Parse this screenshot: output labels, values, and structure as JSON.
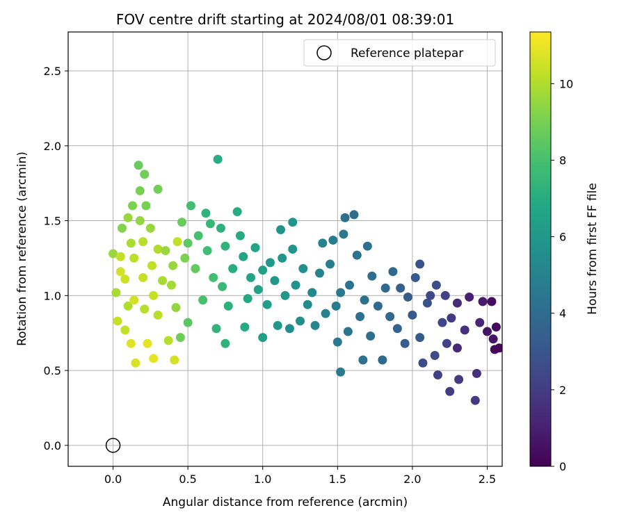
{
  "chart_data": {
    "type": "scatter",
    "title": "FOV centre drift starting at 2024/08/01 08:39:01",
    "xlabel": "Angular distance from reference (arcmin)",
    "ylabel": "Rotation from reference (arcmin)",
    "xlim": [
      -0.3,
      2.6
    ],
    "ylim": [
      -0.14,
      2.76
    ],
    "xticks": [
      0.0,
      0.5,
      1.0,
      1.5,
      2.0,
      2.5
    ],
    "yticks": [
      0.0,
      0.5,
      1.0,
      1.5,
      2.0,
      2.5
    ],
    "xtick_labels": [
      "0.0",
      "0.5",
      "1.0",
      "1.5",
      "2.0",
      "2.5"
    ],
    "ytick_labels": [
      "0.0",
      "0.5",
      "1.0",
      "1.5",
      "2.0",
      "2.5"
    ],
    "grid": true,
    "legend": {
      "placement": "upper-right",
      "entries": [
        "Reference platepar"
      ]
    },
    "reference_point": {
      "x": 0.0,
      "y": 0.0
    },
    "colorbar": {
      "label": "Hours from first FF file",
      "colormap": "viridis",
      "range": [
        0,
        11.35
      ],
      "ticks": [
        0,
        2,
        4,
        6,
        8,
        10
      ],
      "tick_labels": [
        "0",
        "2",
        "4",
        "6",
        "8",
        "10"
      ]
    },
    "series": [
      {
        "columns": [
          "x",
          "y",
          "hours"
        ],
        "points": [
          [
            0.0,
            1.28,
            9.6
          ],
          [
            0.05,
            1.16,
            10.6
          ],
          [
            0.05,
            1.26,
            10.3
          ],
          [
            0.02,
            1.02,
            9.9
          ],
          [
            0.03,
            0.83,
            10.4
          ],
          [
            0.06,
            1.45,
            9.2
          ],
          [
            0.08,
            1.11,
            10.5
          ],
          [
            0.1,
            0.93,
            10.0
          ],
          [
            0.08,
            0.77,
            10.3
          ],
          [
            0.12,
            0.68,
            10.8
          ],
          [
            0.1,
            1.52,
            9.6
          ],
          [
            0.12,
            1.35,
            9.9
          ],
          [
            0.14,
            1.25,
            10.2
          ],
          [
            0.13,
            1.6,
            9.1
          ],
          [
            0.14,
            0.97,
            10.6
          ],
          [
            0.15,
            0.55,
            10.7
          ],
          [
            0.17,
            1.87,
            8.7
          ],
          [
            0.18,
            1.7,
            9.0
          ],
          [
            0.21,
            1.81,
            8.9
          ],
          [
            0.18,
            1.5,
            9.5
          ],
          [
            0.2,
            1.36,
            10.1
          ],
          [
            0.2,
            1.12,
            10.4
          ],
          [
            0.21,
            0.91,
            10.1
          ],
          [
            0.22,
            1.6,
            9.0
          ],
          [
            0.23,
            0.68,
            10.9
          ],
          [
            0.25,
            1.45,
            9.6
          ],
          [
            0.26,
            1.2,
            10.3
          ],
          [
            0.27,
            1.0,
            10.4
          ],
          [
            0.27,
            0.58,
            10.9
          ],
          [
            0.3,
            1.71,
            8.9
          ],
          [
            0.3,
            1.31,
            10.0
          ],
          [
            0.3,
            0.87,
            10.1
          ],
          [
            0.33,
            1.1,
            9.9
          ],
          [
            0.35,
            1.3,
            9.6
          ],
          [
            0.37,
            0.7,
            10.1
          ],
          [
            0.39,
            1.07,
            9.8
          ],
          [
            0.4,
            1.2,
            9.6
          ],
          [
            0.41,
            0.57,
            10.6
          ],
          [
            0.42,
            0.92,
            9.5
          ],
          [
            0.43,
            1.36,
            10.3
          ],
          [
            0.45,
            0.72,
            8.8
          ],
          [
            0.46,
            1.49,
            8.7
          ],
          [
            0.5,
            0.82,
            8.4
          ],
          [
            0.48,
            1.25,
            9.1
          ],
          [
            0.5,
            1.35,
            8.5
          ],
          [
            0.52,
            1.6,
            7.9
          ],
          [
            0.55,
            1.18,
            8.6
          ],
          [
            0.57,
            1.4,
            8.0
          ],
          [
            0.6,
            0.97,
            8.0
          ],
          [
            0.62,
            1.55,
            7.3
          ],
          [
            0.63,
            1.3,
            7.8
          ],
          [
            0.65,
            1.48,
            7.5
          ],
          [
            0.67,
            1.12,
            7.9
          ],
          [
            0.69,
            0.78,
            7.4
          ],
          [
            0.7,
            1.91,
            7.0
          ],
          [
            0.72,
            1.45,
            7.2
          ],
          [
            0.73,
            1.06,
            7.6
          ],
          [
            0.75,
            0.68,
            7.3
          ],
          [
            0.75,
            1.33,
            7.3
          ],
          [
            0.77,
            0.93,
            7.2
          ],
          [
            0.8,
            1.18,
            7.0
          ],
          [
            0.83,
            1.56,
            7.0
          ],
          [
            0.85,
            1.4,
            6.9
          ],
          [
            0.87,
            1.26,
            6.6
          ],
          [
            0.88,
            0.79,
            6.9
          ],
          [
            0.9,
            0.98,
            6.8
          ],
          [
            0.92,
            1.12,
            6.6
          ],
          [
            0.95,
            1.32,
            6.6
          ],
          [
            0.97,
            1.04,
            6.5
          ],
          [
            1.0,
            0.72,
            6.4
          ],
          [
            1.0,
            1.17,
            6.4
          ],
          [
            1.03,
            0.94,
            6.3
          ],
          [
            1.05,
            1.22,
            6.0
          ],
          [
            1.08,
            1.1,
            5.9
          ],
          [
            1.1,
            0.8,
            6.0
          ],
          [
            1.12,
            1.44,
            5.8
          ],
          [
            1.13,
            1.25,
            5.9
          ],
          [
            1.15,
            1.0,
            5.9
          ],
          [
            1.18,
            0.78,
            5.5
          ],
          [
            1.2,
            1.31,
            5.8
          ],
          [
            1.2,
            1.49,
            5.8
          ],
          [
            1.22,
            1.07,
            5.7
          ],
          [
            1.25,
            0.83,
            5.6
          ],
          [
            1.27,
            1.18,
            5.6
          ],
          [
            1.3,
            0.94,
            5.4
          ],
          [
            1.33,
            1.02,
            5.3
          ],
          [
            1.35,
            0.8,
            5.2
          ],
          [
            1.38,
            1.15,
            5.1
          ],
          [
            1.4,
            1.35,
            5.0
          ],
          [
            1.42,
            0.88,
            5.0
          ],
          [
            1.45,
            1.21,
            4.8
          ],
          [
            1.47,
            1.37,
            4.7
          ],
          [
            1.49,
            0.93,
            4.7
          ],
          [
            1.5,
            0.69,
            4.6
          ],
          [
            1.52,
            1.02,
            4.6
          ],
          [
            1.52,
            0.49,
            4.6
          ],
          [
            1.54,
            1.41,
            4.5
          ],
          [
            1.55,
            1.52,
            4.2
          ],
          [
            1.57,
            0.76,
            4.4
          ],
          [
            1.58,
            1.07,
            4.3
          ],
          [
            1.61,
            1.54,
            4.0
          ],
          [
            1.63,
            1.27,
            4.2
          ],
          [
            1.65,
            0.86,
            4.2
          ],
          [
            1.67,
            0.57,
            4.2
          ],
          [
            1.68,
            0.97,
            4.2
          ],
          [
            1.7,
            1.33,
            4.1
          ],
          [
            1.72,
            0.73,
            4.1
          ],
          [
            1.73,
            1.13,
            4.1
          ],
          [
            1.77,
            0.93,
            3.9
          ],
          [
            1.8,
            0.57,
            3.9
          ],
          [
            1.82,
            1.05,
            3.8
          ],
          [
            1.85,
            0.86,
            3.8
          ],
          [
            1.87,
            1.16,
            3.8
          ],
          [
            1.9,
            0.78,
            3.5
          ],
          [
            1.92,
            1.05,
            3.5
          ],
          [
            1.95,
            0.68,
            3.3
          ],
          [
            1.97,
            0.99,
            3.3
          ],
          [
            2.0,
            0.87,
            3.2
          ],
          [
            2.02,
            1.12,
            3.2
          ],
          [
            2.05,
            1.21,
            2.8
          ],
          [
            2.05,
            0.72,
            3.2
          ],
          [
            2.07,
            0.55,
            2.6
          ],
          [
            2.1,
            0.95,
            2.8
          ],
          [
            2.12,
            1.0,
            2.5
          ],
          [
            2.15,
            0.6,
            2.6
          ],
          [
            2.16,
            1.07,
            2.7
          ],
          [
            2.17,
            0.47,
            2.2
          ],
          [
            2.2,
            0.82,
            2.4
          ],
          [
            2.22,
            1.0,
            2.2
          ],
          [
            2.23,
            0.68,
            2.2
          ],
          [
            2.25,
            0.36,
            2.0
          ],
          [
            2.26,
            0.85,
            1.9
          ],
          [
            2.3,
            0.95,
            1.4
          ],
          [
            2.3,
            0.65,
            1.3
          ],
          [
            2.31,
            0.44,
            1.9
          ],
          [
            2.35,
            0.77,
            1.6
          ],
          [
            2.38,
            0.99,
            1.0
          ],
          [
            2.42,
            0.3,
            1.9
          ],
          [
            2.43,
            0.48,
            1.6
          ],
          [
            2.45,
            0.82,
            1.2
          ],
          [
            2.47,
            0.96,
            0.8
          ],
          [
            2.5,
            0.76,
            0.6
          ],
          [
            2.53,
            0.96,
            0.4
          ],
          [
            2.54,
            0.71,
            0.5
          ],
          [
            2.55,
            0.64,
            0.3
          ],
          [
            2.56,
            0.79,
            0.3
          ],
          [
            2.58,
            0.65,
            0.1
          ]
        ]
      }
    ]
  }
}
